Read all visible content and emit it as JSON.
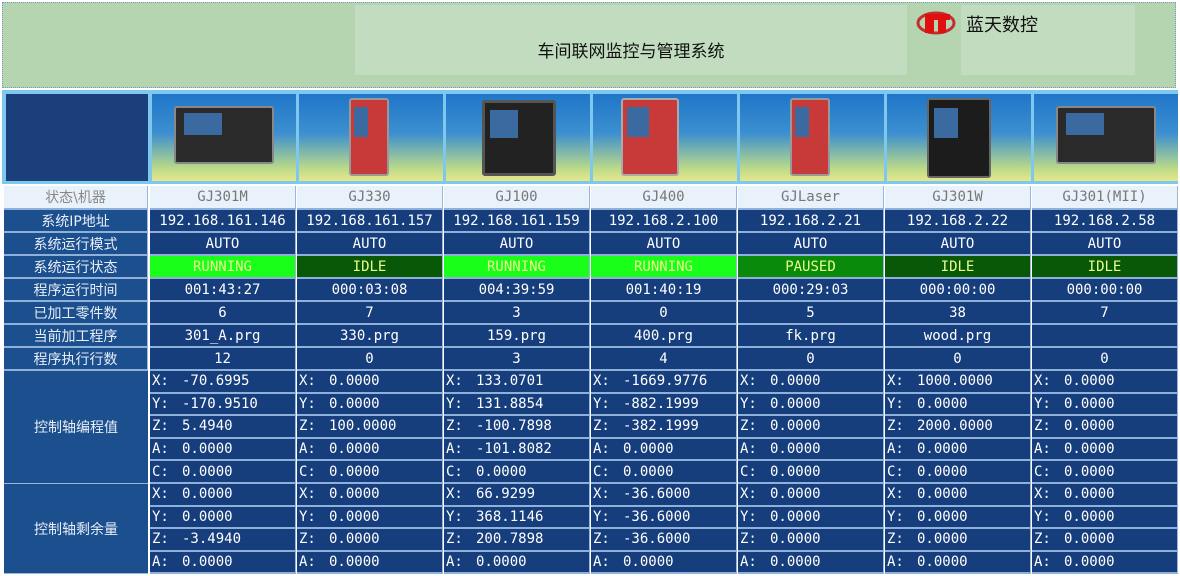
{
  "header": {
    "title": "车间联网监控与管理系统",
    "brand": "蓝天数控",
    "logo_icon": "lt-logo-icon"
  },
  "colors": {
    "running": "#19ff19",
    "paused": "#0a8a0a",
    "idle": "#085808",
    "cell_bg": "#163d7c",
    "label_bg": "#1b4f8e",
    "header_bg": "#b4d5b0"
  },
  "row_labels": {
    "corner": "状态\\机器",
    "ip": "系统IP地址",
    "mode": "系统运行模式",
    "state": "系统运行状态",
    "runtime": "程序运行时间",
    "parts": "已加工零件数",
    "program": "当前加工程序",
    "lines": "程序执行行数",
    "prog_axes": "控制轴编程值",
    "remain_axes": "控制轴剩余量"
  },
  "axis_names": {
    "prog": [
      "X:",
      "Y:",
      "Z:",
      "A:",
      "C:"
    ],
    "remain": [
      "X:",
      "Y:",
      "Z:",
      "A:"
    ]
  },
  "machines": [
    {
      "name": "GJ301M",
      "ip": "192.168.161.146",
      "mode": "AUTO",
      "state": "RUNNING",
      "runtime": "001:43:27",
      "parts": "6",
      "program": "301_A.prg",
      "lines": "12",
      "prog": [
        "-70.6995",
        "-170.9510",
        "5.4940",
        "0.0000",
        "0.0000"
      ],
      "remain": [
        "0.0000",
        "0.0000",
        "-3.4940",
        "0.0000"
      ]
    },
    {
      "name": "GJ330",
      "ip": "192.168.161.157",
      "mode": "AUTO",
      "state": "IDLE",
      "runtime": "000:03:08",
      "parts": "7",
      "program": "330.prg",
      "lines": "0",
      "prog": [
        "0.0000",
        "0.0000",
        "100.0000",
        "0.0000",
        "0.0000"
      ],
      "remain": [
        "0.0000",
        "0.0000",
        "0.0000",
        "0.0000"
      ]
    },
    {
      "name": "GJ100",
      "ip": "192.168.161.159",
      "mode": "AUTO",
      "state": "RUNNING",
      "runtime": "004:39:59",
      "parts": "3",
      "program": "159.prg",
      "lines": "3",
      "prog": [
        "133.0701",
        "131.8854",
        "-100.7898",
        "-101.8082",
        "0.0000"
      ],
      "remain": [
        "66.9299",
        "368.1146",
        "200.7898",
        "0.0000"
      ]
    },
    {
      "name": "GJ400",
      "ip": "192.168.2.100",
      "mode": "AUTO",
      "state": "RUNNING",
      "runtime": "001:40:19",
      "parts": "0",
      "program": "400.prg",
      "lines": "4",
      "prog": [
        "-1669.9776",
        "-882.1999",
        "-382.1999",
        "0.0000",
        "0.0000"
      ],
      "remain": [
        "-36.6000",
        "-36.6000",
        "-36.6000",
        "0.0000"
      ]
    },
    {
      "name": "GJLaser",
      "ip": "192.168.2.21",
      "mode": "AUTO",
      "state": "PAUSED",
      "runtime": "000:29:03",
      "parts": "5",
      "program": "fk.prg",
      "lines": "0",
      "prog": [
        "0.0000",
        "0.0000",
        "0.0000",
        "0.0000",
        "0.0000"
      ],
      "remain": [
        "0.0000",
        "0.0000",
        "0.0000",
        "0.0000"
      ]
    },
    {
      "name": "GJ301W",
      "ip": "192.168.2.22",
      "mode": "AUTO",
      "state": "IDLE",
      "runtime": "000:00:00",
      "parts": "38",
      "program": "wood.prg",
      "lines": "0",
      "prog": [
        "1000.0000",
        "0.0000",
        "2000.0000",
        "0.0000",
        "0.0000"
      ],
      "remain": [
        "0.0000",
        "0.0000",
        "0.0000",
        "0.0000"
      ]
    },
    {
      "name": "GJ301(MII)",
      "ip": "192.168.2.58",
      "mode": "AUTO",
      "state": "IDLE",
      "runtime": "000:00:00",
      "parts": "7",
      "program": "",
      "lines": "0",
      "prog": [
        "0.0000",
        "0.0000",
        "0.0000",
        "0.0000",
        "0.0000"
      ],
      "remain": [
        "0.0000",
        "0.0000",
        "0.0000",
        "0.0000"
      ]
    }
  ]
}
